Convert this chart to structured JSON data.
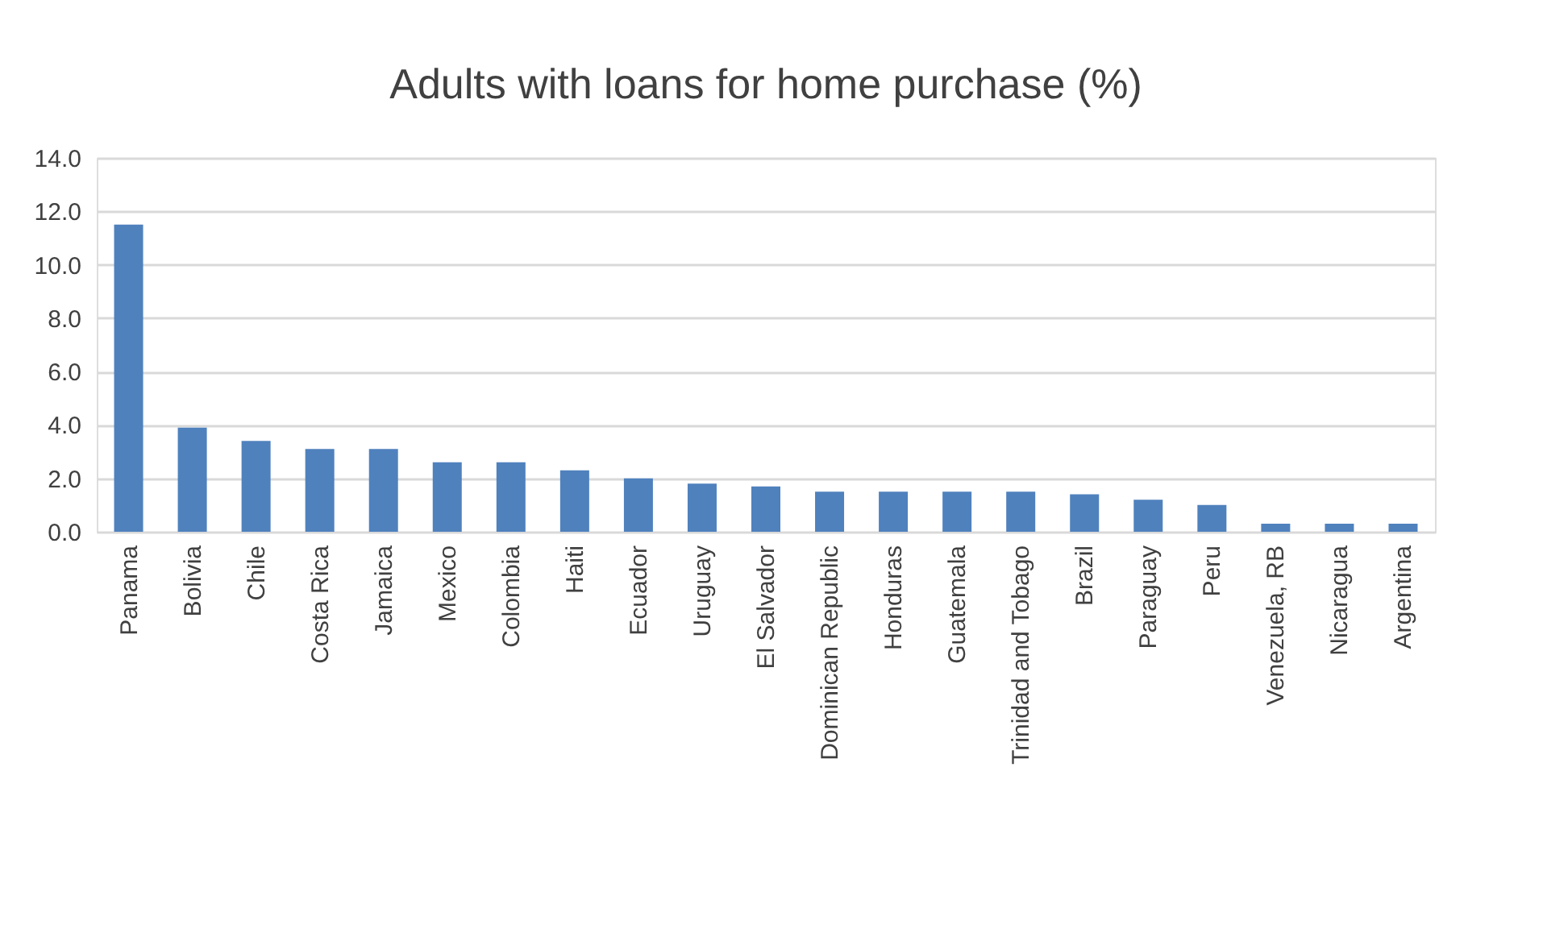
{
  "chart_data": {
    "type": "bar",
    "title": "Adults with loans for home purchase (%)",
    "categories": [
      "Panama",
      "Bolivia",
      "Chile",
      "Costa Rica",
      "Jamaica",
      "Mexico",
      "Colombia",
      "Haiti",
      "Ecuador",
      "Uruguay",
      "El Salvador",
      "Dominican Republic",
      "Honduras",
      "Guatemala",
      "Trinidad and Tobago",
      "Brazil",
      "Paraguay",
      "Peru",
      "Venezuela, RB",
      "Nicaragua",
      "Argentina"
    ],
    "values": [
      11.5,
      3.9,
      3.4,
      3.1,
      3.1,
      2.6,
      2.6,
      2.3,
      2.0,
      1.8,
      1.7,
      1.5,
      1.5,
      1.5,
      1.5,
      1.4,
      1.2,
      1.0,
      0.3,
      0.3,
      0.3
    ],
    "color": "#4f81bd",
    "ylim": [
      0,
      14
    ],
    "yticks": [
      {
        "value": 0,
        "label": "0.0"
      },
      {
        "value": 2,
        "label": "2.0"
      },
      {
        "value": 4,
        "label": "4.0"
      },
      {
        "value": 6,
        "label": "6.0"
      },
      {
        "value": 8,
        "label": "8.0"
      },
      {
        "value": 10,
        "label": "10.0"
      },
      {
        "value": 12,
        "label": "12.0"
      },
      {
        "value": 14,
        "label": "14.0"
      }
    ],
    "grid": "y"
  }
}
